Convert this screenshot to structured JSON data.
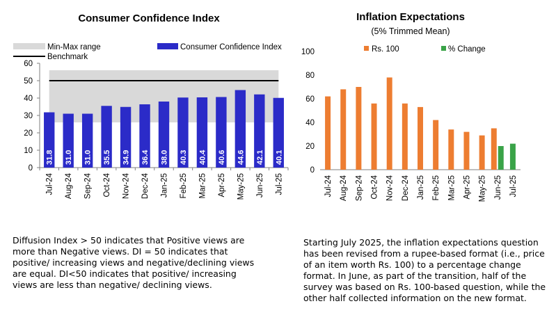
{
  "chart_data": [
    {
      "type": "bar",
      "title": "Consumer Confidence Index",
      "categories": [
        "Jul-24",
        "Aug-24",
        "Sep-24",
        "Oct-24",
        "Nov-24",
        "Dec-24",
        "Jan-25",
        "Feb-25",
        "Mar-25",
        "Apr-25",
        "May-25",
        "Jun-25",
        "Jul-25"
      ],
      "series": [
        {
          "name": "Consumer Confidence Index",
          "values": [
            31.8,
            31.0,
            31.0,
            35.5,
            34.9,
            36.4,
            38.0,
            40.3,
            40.4,
            40.6,
            44.6,
            42.1,
            40.1
          ],
          "color": "#2b2bc8"
        }
      ],
      "range_band": {
        "name": "Min-Max range",
        "min": 26,
        "max": 56,
        "color": "#d9d9d9"
      },
      "benchmark": {
        "name": "Benchmark",
        "value": 50,
        "color": "#000000"
      },
      "ylim": [
        0,
        60
      ],
      "yticks": [
        0,
        10,
        20,
        30,
        40,
        50,
        60
      ],
      "data_labels": true,
      "legend_position": "top"
    },
    {
      "type": "bar",
      "title": "Inflation Expectations",
      "subtitle": "(5% Trimmed Mean)",
      "categories": [
        "Jul-24",
        "Aug-24",
        "Sep-24",
        "Oct-24",
        "Nov-24",
        "Dec-24",
        "Jan-25",
        "Feb-25",
        "Mar-25",
        "Apr-25",
        "May-25",
        "Jun-25",
        "Jul-25"
      ],
      "series": [
        {
          "name": "Rs. 100",
          "values": [
            62,
            68,
            70,
            56,
            78,
            56,
            53,
            42,
            34,
            32,
            29,
            35,
            null
          ],
          "color": "#ed7d31"
        },
        {
          "name": "% Change",
          "values": [
            null,
            null,
            null,
            null,
            null,
            null,
            null,
            null,
            null,
            null,
            null,
            20,
            22
          ],
          "color": "#3aa348"
        }
      ],
      "ylim": [
        0,
        100
      ],
      "yticks": [
        0,
        20,
        40,
        60,
        80,
        100
      ],
      "legend_position": "top"
    }
  ],
  "notes": {
    "left": "Diffusion Index > 50 indicates that Positive views are more than Negative views. DI = 50 indicates that positive/ increasing views and negative/declining views are equal. DI<50 indicates that positive/ increasing views are less than negative/ declining views.",
    "right": "Starting July 2025, the inflation expectations question has been revised from a rupee-based format (i.e., price of an item worth Rs. 100) to a percentage change format. In June, as part of the transition, half of the survey was based on Rs. 100-based question, while the other half collected information on the new format."
  }
}
